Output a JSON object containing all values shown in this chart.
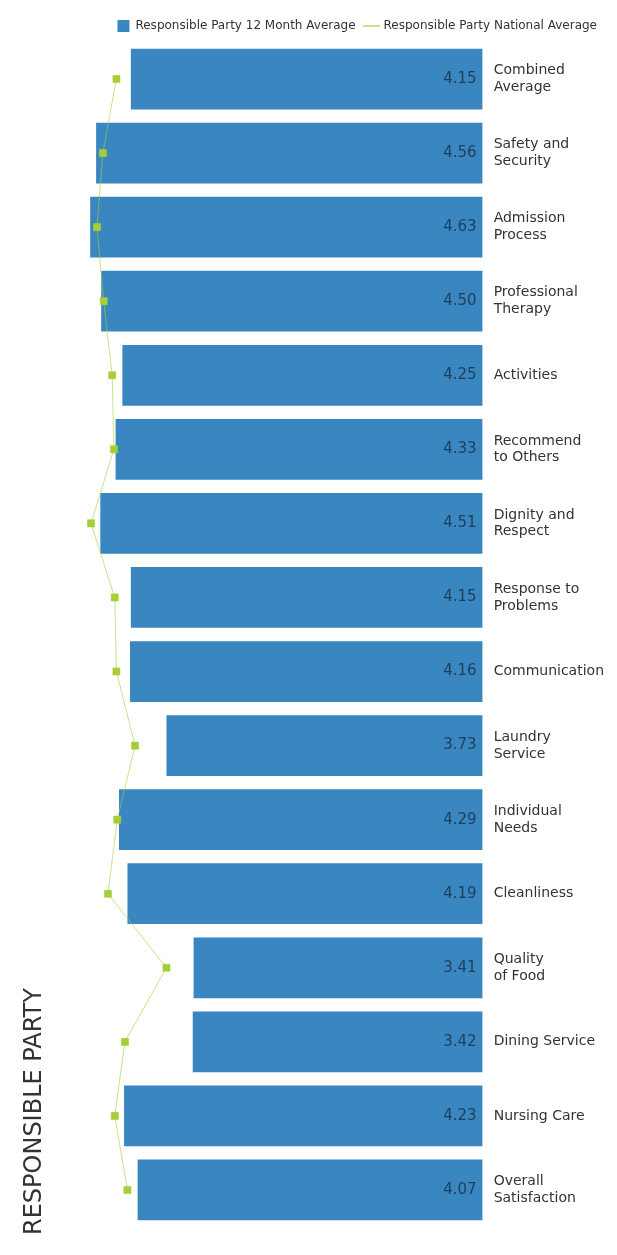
{
  "chart_data": {
    "type": "bar",
    "orientation": "horizontal",
    "title": "RESPONSIBLE PARTY",
    "categories": [
      "Combined Average",
      "Safety and Security",
      "Admission Process",
      "Professional Therapy",
      "Activities",
      "Recommend to Others",
      "Dignity and Respect",
      "Response to Problems",
      "Communication",
      "Laundry Service",
      "Individual Needs",
      "Cleanliness",
      "Quality of Food",
      "Dining Service",
      "Nursing Care",
      "Overall Satisfaction"
    ],
    "tick_labels": "y",
    "legend": "top right",
    "grid": false,
    "series": [
      {
        "name": "Responsible Party 12 Month Average",
        "color": "#3a86c0",
        "values": [
          4.15,
          4.56,
          4.63,
          4.5,
          4.25,
          4.33,
          4.51,
          4.15,
          4.16,
          3.73,
          4.29,
          4.19,
          3.41,
          3.42,
          4.23,
          4.07
        ],
        "value_labels": [
          "4.15",
          "4.56",
          "4.63",
          "4.50",
          "4.25",
          "4.33",
          "4.51",
          "4.15",
          "4.16",
          "3.73",
          "4.29",
          "4.19",
          "3.41",
          "3.42",
          "4.23",
          "4.07"
        ]
      },
      {
        "name": "Responsible Party National Average",
        "type": "line",
        "color": "#a6ce39",
        "marker": "square",
        "values": [
          4.32,
          4.48,
          4.55,
          4.47,
          4.37,
          4.35,
          4.62,
          4.34,
          4.32,
          4.1,
          4.31,
          4.42,
          3.73,
          4.22,
          4.34,
          4.19
        ]
      }
    ]
  }
}
